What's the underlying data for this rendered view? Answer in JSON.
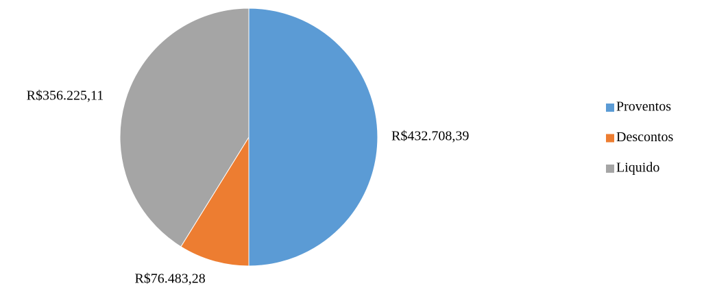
{
  "chart_data": {
    "type": "pie",
    "categories": [
      "Proventos",
      "Descontos",
      "Liquido"
    ],
    "values": [
      432708.39,
      76483.28,
      356225.11
    ],
    "value_labels": [
      "R$432.708,39",
      "R$76.483,28",
      "R$356.225,11"
    ],
    "colors": [
      "#5b9bd5",
      "#ed7d31",
      "#a5a5a5"
    ],
    "legend": "right"
  }
}
